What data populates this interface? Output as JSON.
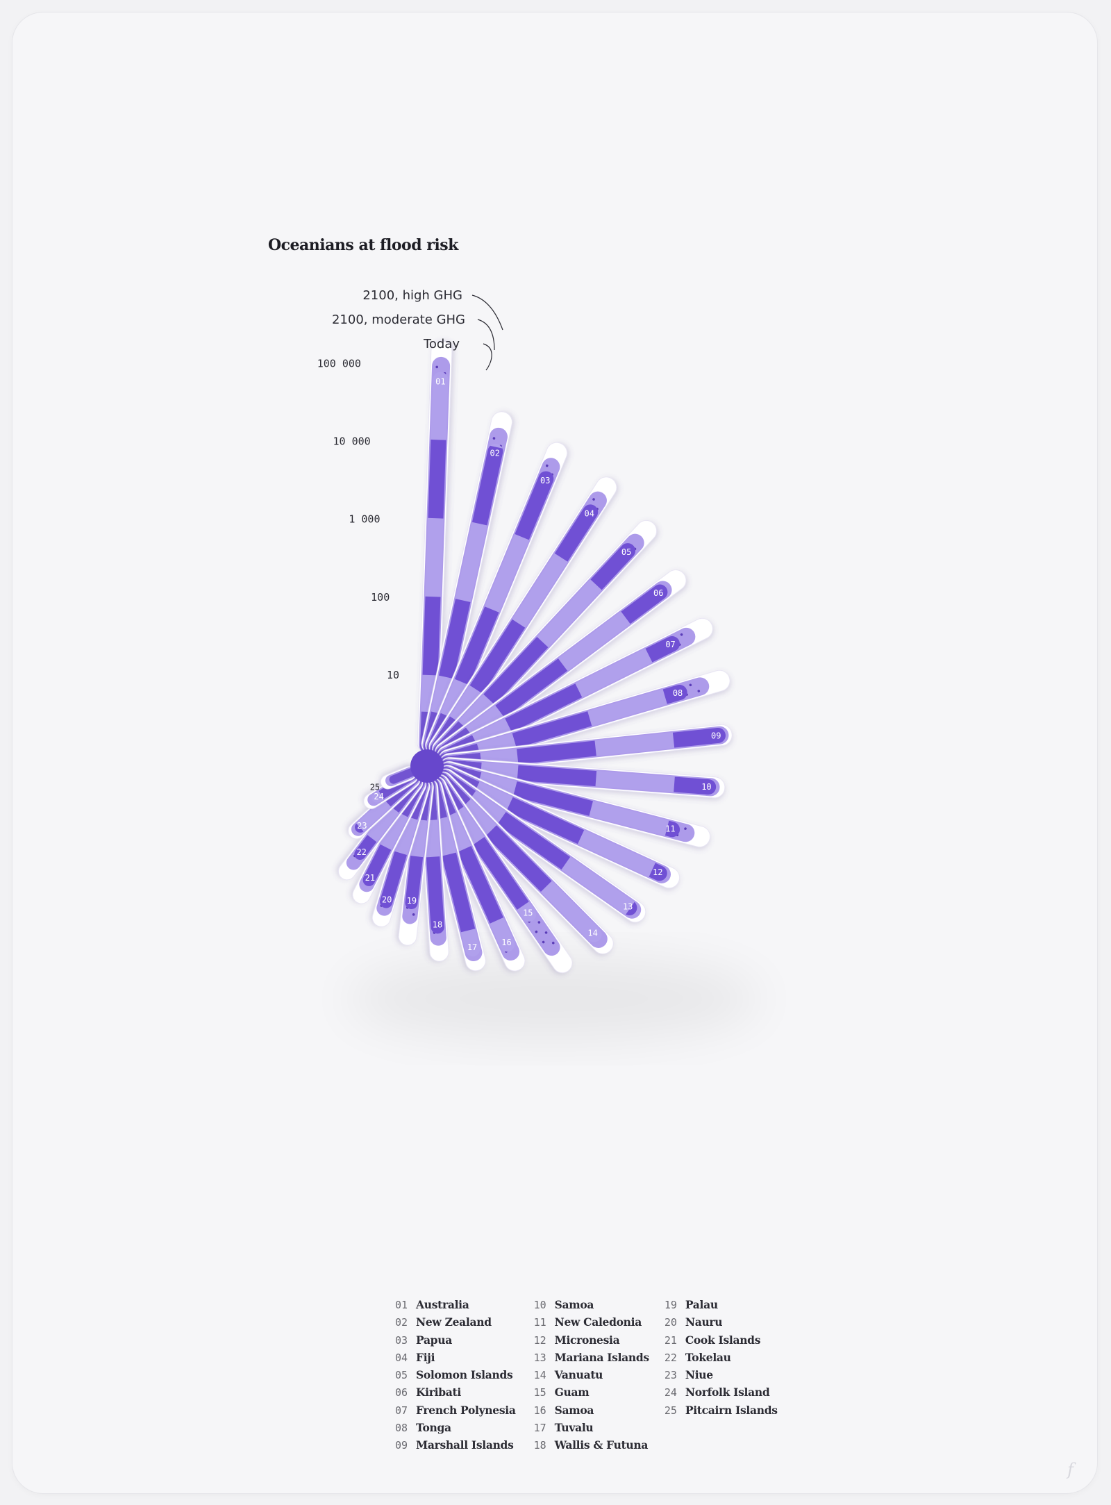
{
  "chart_data": {
    "type": "radial-bar",
    "title": "Oceanians at flood risk",
    "scale": "log",
    "ticks": [
      "100 000",
      "10 000",
      "1 000",
      "100",
      "10"
    ],
    "scenarios": [
      "Today",
      "2100, moderate GHG",
      "2100, high GHG"
    ],
    "countries": [
      {
        "code": "01",
        "name": "Australia",
        "today": 60000,
        "moderate": 90000,
        "high": 140000
      },
      {
        "code": "02",
        "name": "New Zealand",
        "today": 9000,
        "moderate": 14000,
        "high": 22000
      },
      {
        "code": "03",
        "name": "Papua",
        "today": 6500,
        "moderate": 9500,
        "high": 15000
      },
      {
        "code": "04",
        "name": "Fiji",
        "today": 5000,
        "moderate": 7500,
        "high": 12000
      },
      {
        "code": "05",
        "name": "Solomon Islands",
        "today": 4000,
        "moderate": 5500,
        "high": 9000
      },
      {
        "code": "06",
        "name": "Kiribati",
        "today": 3600,
        "moderate": 4000,
        "high": 6500
      },
      {
        "code": "07",
        "name": "French Polynesia",
        "today": 2200,
        "moderate": 3500,
        "high": 6000
      },
      {
        "code": "08",
        "name": "Tonga",
        "today": 1600,
        "moderate": 3000,
        "high": 5500
      },
      {
        "code": "09",
        "name": "Marshall Islands",
        "today": 3800,
        "moderate": 4000,
        "high": 4300
      },
      {
        "code": "10",
        "name": "Samoa",
        "today": 2800,
        "moderate": 3000,
        "high": 3400
      },
      {
        "code": "11",
        "name": "New Caledonia",
        "today": 1200,
        "moderate": 1800,
        "high": 2800
      },
      {
        "code": "12",
        "name": "Micronesia",
        "today": 1300,
        "moderate": 1400,
        "high": 1800
      },
      {
        "code": "13",
        "name": "Mariana Islands",
        "today": 1000,
        "moderate": 1100,
        "high": 1250
      },
      {
        "code": "14",
        "name": "Vanuatu",
        "today": 750,
        "moderate": 900,
        "high": 1100
      },
      {
        "code": "15",
        "name": "Guam",
        "today": 140,
        "moderate": 450,
        "high": 800
      },
      {
        "code": "16",
        "name": "Samoa",
        "today": 220,
        "moderate": 280,
        "high": 380
      },
      {
        "code": "17",
        "name": "Tuvalu",
        "today": 180,
        "moderate": 200,
        "high": 260
      },
      {
        "code": "18",
        "name": "Wallis & Futuna",
        "today": 80,
        "moderate": 110,
        "high": 170
      },
      {
        "code": "19",
        "name": "Palau",
        "today": 40,
        "moderate": 60,
        "high": 110
      },
      {
        "code": "20",
        "name": "Nauru",
        "today": 45,
        "moderate": 55,
        "high": 75
      },
      {
        "code": "21",
        "name": "Cook Islands",
        "today": 30,
        "moderate": 35,
        "high": 50
      },
      {
        "code": "22",
        "name": "Tokelau",
        "today": 18,
        "moderate": 25,
        "high": 35
      },
      {
        "code": "23",
        "name": "Niue",
        "today": 10,
        "moderate": 11,
        "high": 12
      },
      {
        "code": "24",
        "name": "Norfolk Island",
        "today": 4,
        "moderate": 4.5,
        "high": 5
      },
      {
        "code": "25",
        "name": "Pitcairn Islands",
        "today": 2,
        "moderate": 2.2,
        "high": 2.5
      }
    ]
  },
  "colors": {
    "today": "#6747cc",
    "moderate": "#ad9bea",
    "high": "#ffffff",
    "band_dark": "#7050d4",
    "band_light": "#b0a0ec"
  }
}
